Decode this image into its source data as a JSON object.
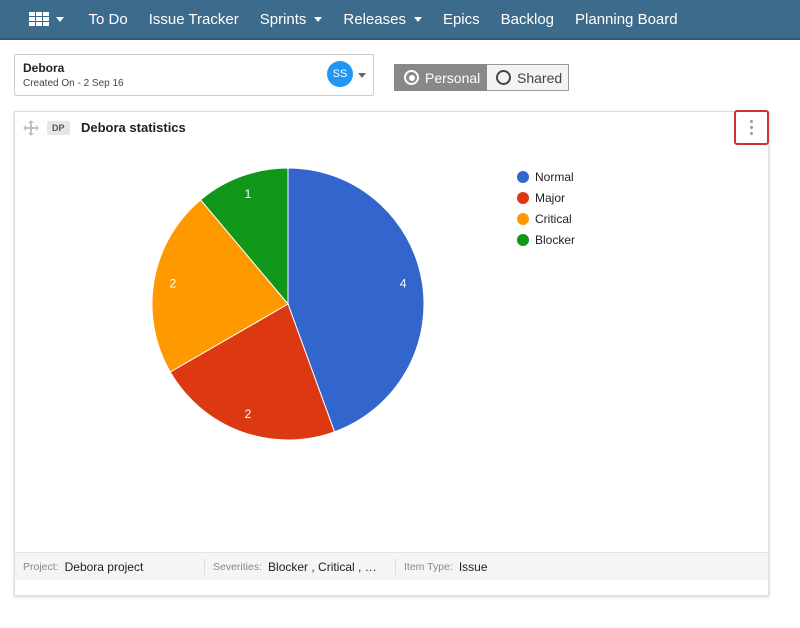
{
  "nav": {
    "items": [
      {
        "label": "To Do",
        "dropdown": false
      },
      {
        "label": "Issue Tracker",
        "dropdown": false
      },
      {
        "label": "Sprints",
        "dropdown": true
      },
      {
        "label": "Releases",
        "dropdown": true
      },
      {
        "label": "Epics",
        "dropdown": false
      },
      {
        "label": "Backlog",
        "dropdown": false
      },
      {
        "label": "Planning Board",
        "dropdown": false
      }
    ],
    "apps_icon": "grid-icon",
    "color": "#3d6b8c"
  },
  "dashboard": {
    "name": "Debora",
    "created": "Created On - 2 Sep 16",
    "avatar_initials": "SS",
    "avatar_color": "#2196f3"
  },
  "view_toggle": {
    "options": [
      "Personal",
      "Shared"
    ],
    "selected": "Personal"
  },
  "widget": {
    "badge": "DP",
    "title": "Debora statistics",
    "footer": {
      "project_label": "Project:",
      "project_value": "Debora project",
      "severities_label": "Severities:",
      "severities_value": "Blocker , Critical , Major , Normal",
      "item_type_label": "Item Type:",
      "item_type_value": "Issue"
    }
  },
  "chart_data": {
    "type": "pie",
    "categories": [
      "Normal",
      "Major",
      "Critical",
      "Blocker"
    ],
    "values": [
      4,
      2,
      2,
      1
    ],
    "colors": [
      "#3366cc",
      "#dc3912",
      "#ff9900",
      "#109618"
    ],
    "legend": "right"
  }
}
